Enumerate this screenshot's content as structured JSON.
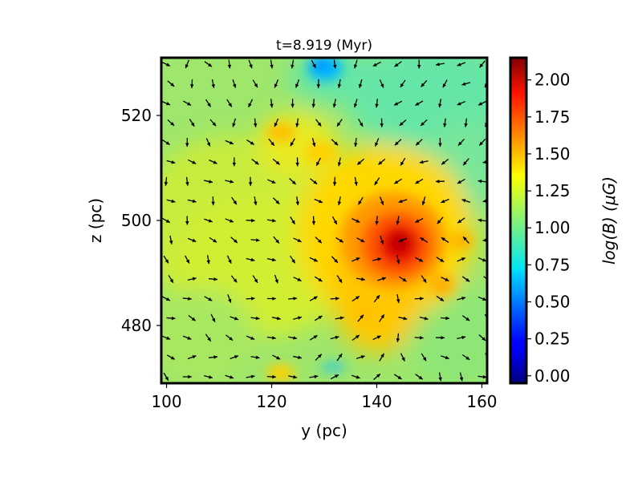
{
  "chart_data": {
    "type": "heatmap",
    "title": "t=8.919 (Myr)",
    "xlabel": "y (pc)",
    "ylabel": "z (pc)",
    "xlim": [
      99,
      161
    ],
    "ylim": [
      469,
      531
    ],
    "xticks": [
      100,
      120,
      140,
      160
    ],
    "yticks": [
      480,
      500,
      520
    ],
    "colorbar": {
      "label": "log(B) (μG)",
      "range": [
        -0.05,
        2.15
      ],
      "ticks": [
        0.0,
        0.25,
        0.5,
        0.75,
        1.0,
        1.25,
        1.5,
        1.75,
        2.0
      ],
      "tick_labels": [
        "0.00",
        "0.25",
        "0.50",
        "0.75",
        "1.00",
        "1.25",
        "1.50",
        "1.75",
        "2.00"
      ],
      "colormap": "jet"
    },
    "field_description": {
      "background_value": 1.1,
      "peak_value": 2.1,
      "peak_location": [
        143,
        496
      ],
      "low_value": 0.7,
      "low_location": [
        131,
        530
      ]
    },
    "overlay": "magnetic field direction arrows"
  }
}
